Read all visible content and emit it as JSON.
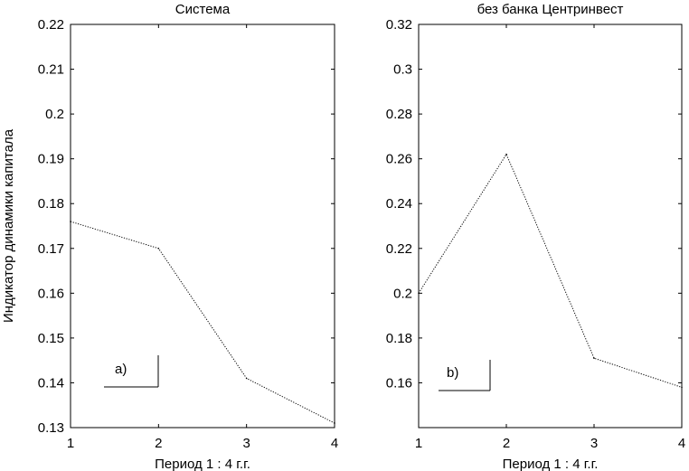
{
  "ylabel": "Индикатор динамики капитала",
  "chart_data": [
    {
      "type": "line",
      "title": "Система",
      "xlabel": "Период 1 : 4 г.г.",
      "x": [
        1,
        2,
        3,
        4
      ],
      "values": [
        0.176,
        0.17,
        0.141,
        0.131
      ],
      "xlim": [
        1,
        4
      ],
      "ylim": [
        0.13,
        0.22
      ],
      "xticks": [
        1,
        2,
        3,
        4
      ],
      "xtick_labels": [
        "1",
        "2",
        "3",
        "4"
      ],
      "yticks": [
        0.13,
        0.14,
        0.15,
        0.16,
        0.17,
        0.18,
        0.19,
        0.2,
        0.21,
        0.22
      ],
      "ytick_labels": [
        "0.13",
        "0.14",
        "0.15",
        "0.16",
        "0.17",
        "0.18",
        "0.19",
        "0.2",
        "0.21",
        "0.22"
      ],
      "annotation": "a)",
      "line_color": "#000000"
    },
    {
      "type": "line",
      "title": "без банка Центринвест",
      "xlabel": "Период 1 : 4 г.г.",
      "x": [
        1,
        2,
        3,
        4
      ],
      "values": [
        0.2,
        0.262,
        0.171,
        0.158
      ],
      "xlim": [
        1,
        4
      ],
      "ylim": [
        0.14,
        0.32
      ],
      "xticks": [
        1,
        2,
        3,
        4
      ],
      "xtick_labels": [
        "1",
        "2",
        "3",
        "4"
      ],
      "yticks": [
        0.16,
        0.18,
        0.2,
        0.22,
        0.24,
        0.26,
        0.28,
        0.3,
        0.32
      ],
      "ytick_labels": [
        "0.16",
        "0.18",
        "0.2",
        "0.22",
        "0.24",
        "0.26",
        "0.28",
        "0.3",
        "0.32"
      ],
      "annotation": "b)",
      "line_color": "#000000"
    }
  ]
}
